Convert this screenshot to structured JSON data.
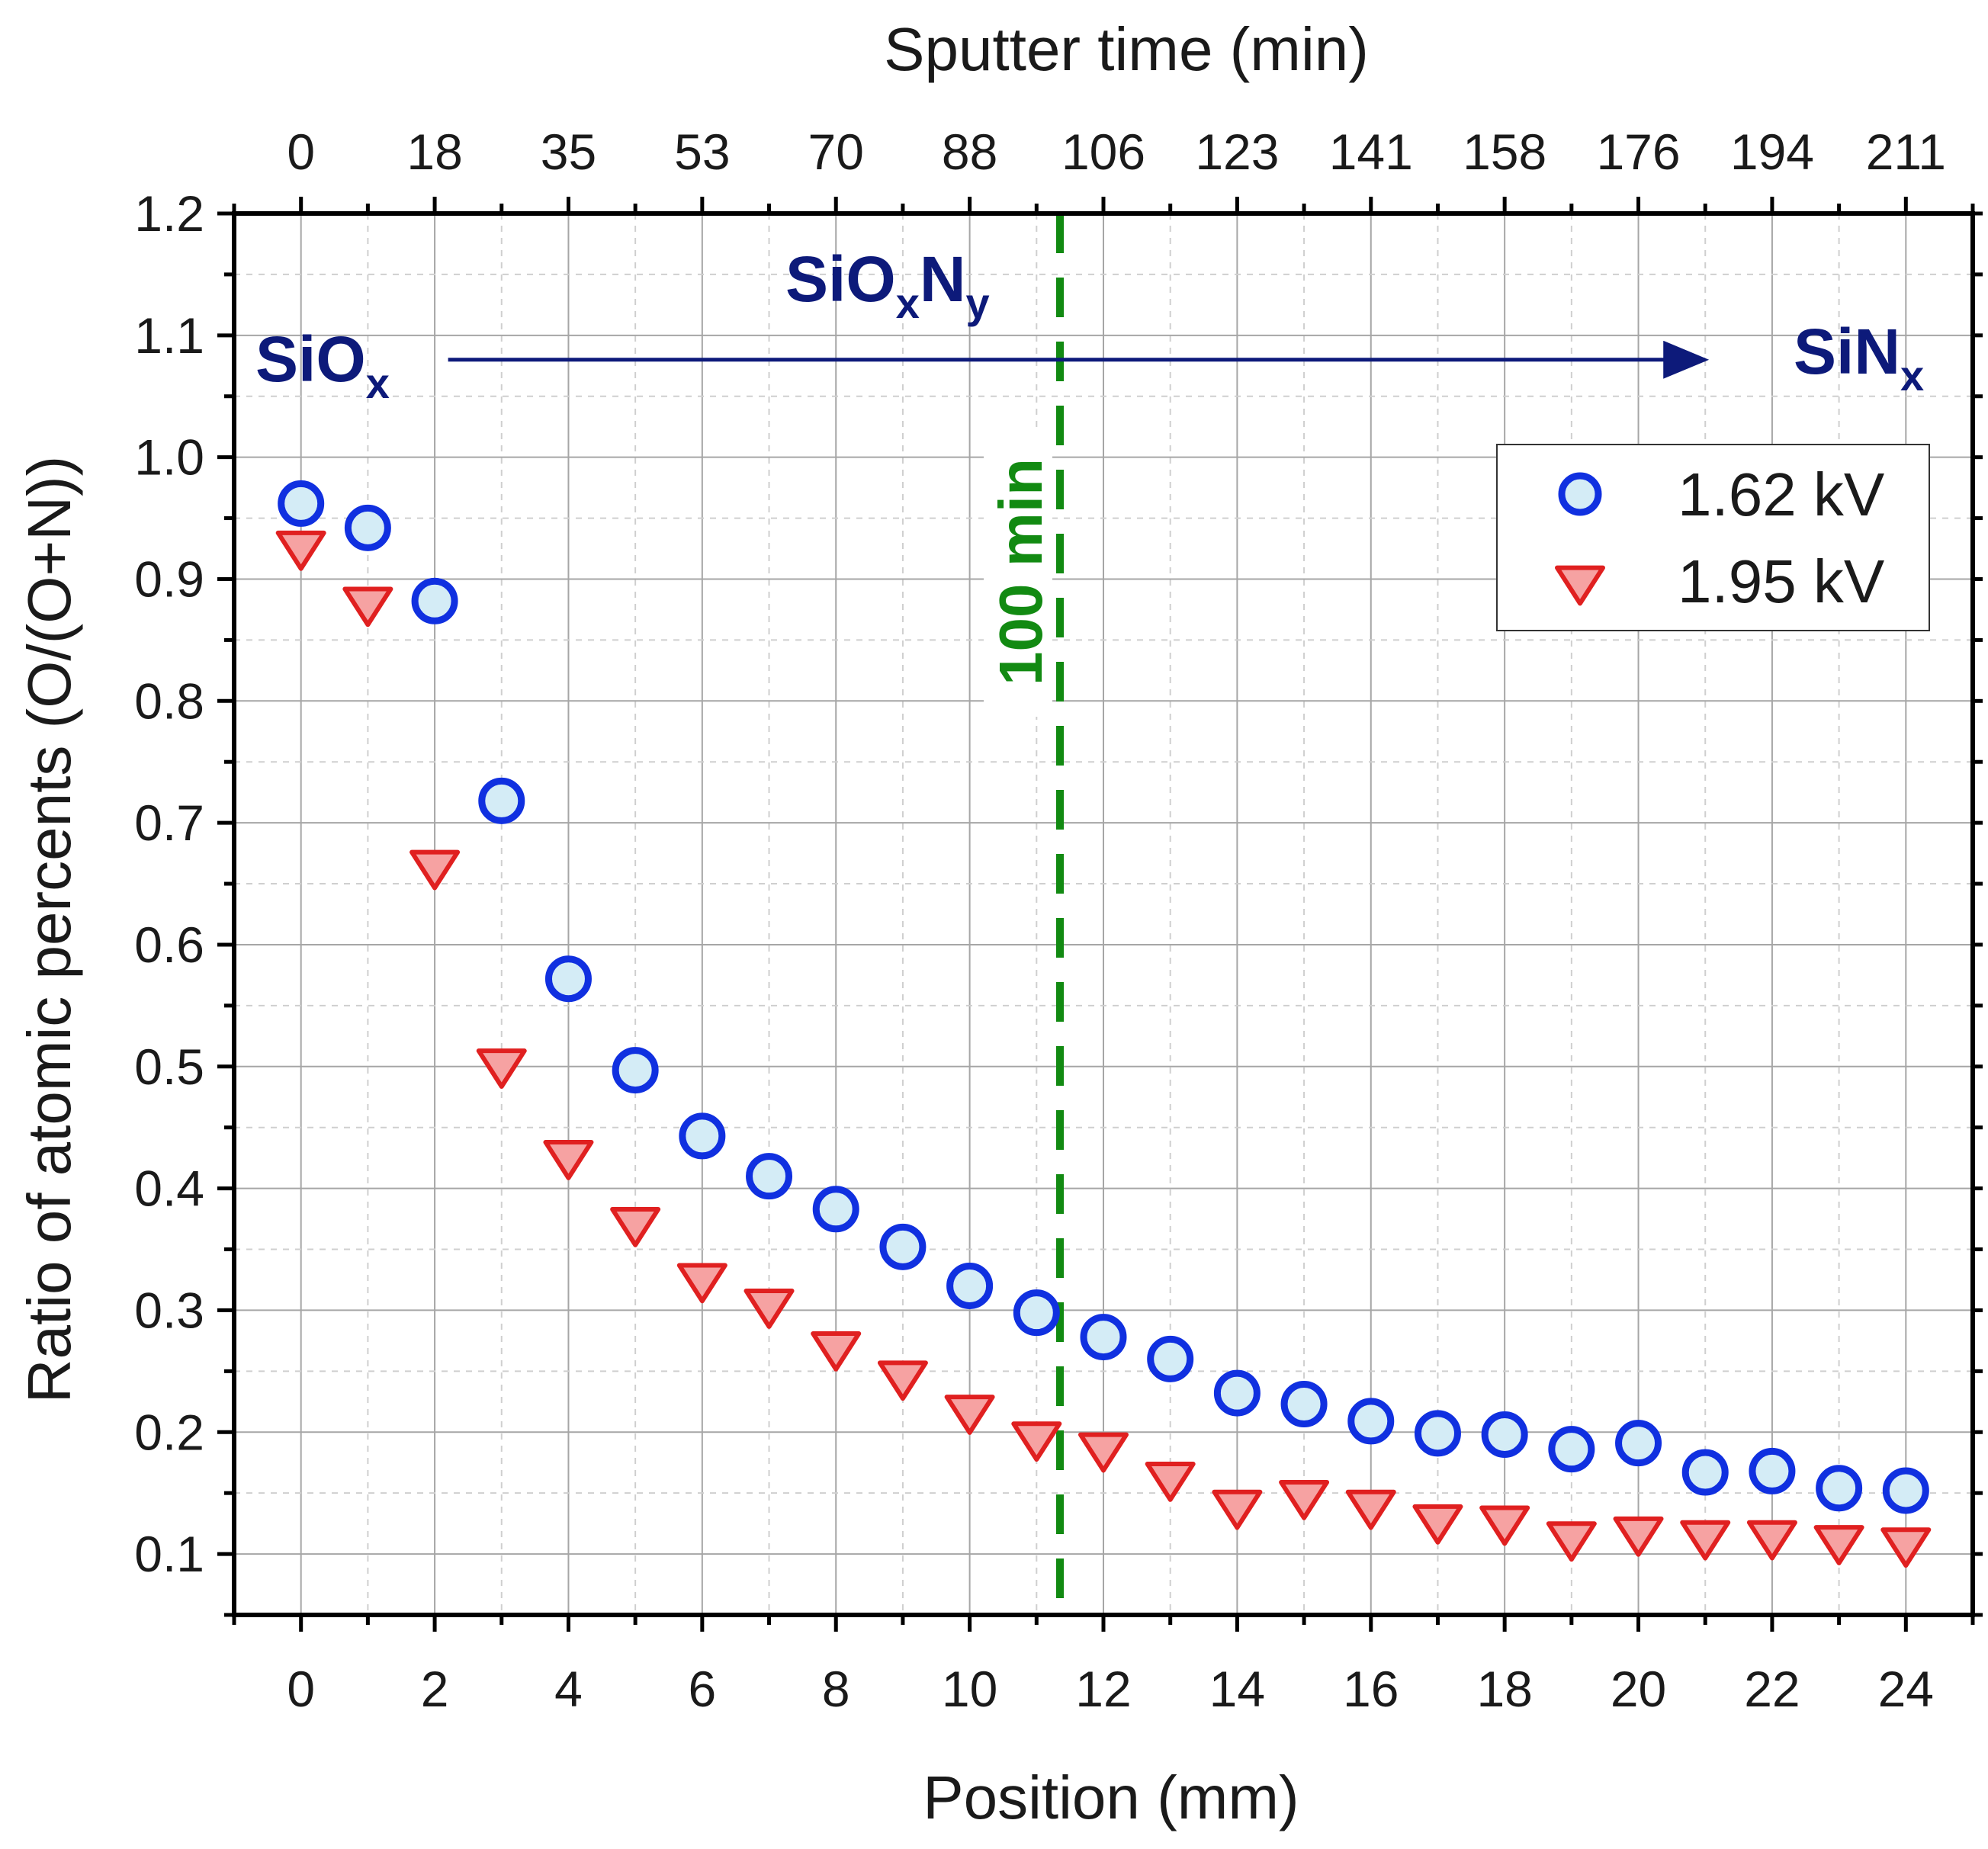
{
  "chart_data": {
    "type": "scatter",
    "xlabel": "Position (mm)",
    "ylabel": "Ratio of atomic percents (O/(O+N))",
    "top_xlabel": "Sputter time (min)",
    "xlim": [
      -1,
      25
    ],
    "ylim": [
      0.05,
      1.2
    ],
    "grid": true,
    "x_ticks": [
      0,
      2,
      4,
      6,
      8,
      10,
      12,
      14,
      16,
      18,
      20,
      22,
      24
    ],
    "y_ticks": [
      0.1,
      0.2,
      0.3,
      0.4,
      0.5,
      0.6,
      0.7,
      0.8,
      0.9,
      1.0,
      1.1,
      1.2
    ],
    "y_tick_labels": [
      "0.1",
      "0.2",
      "0.3",
      "0.4",
      "0.5",
      "0.6",
      "0.7",
      "0.8",
      "0.9",
      "1.0",
      "1.1",
      "1.2"
    ],
    "top_ticks": [
      {
        "x": 0,
        "label": "0"
      },
      {
        "x": 2,
        "label": "18"
      },
      {
        "x": 4,
        "label": "35"
      },
      {
        "x": 6,
        "label": "53"
      },
      {
        "x": 8,
        "label": "70"
      },
      {
        "x": 10,
        "label": "88"
      },
      {
        "x": 12,
        "label": "106"
      },
      {
        "x": 14,
        "label": "123"
      },
      {
        "x": 16,
        "label": "141"
      },
      {
        "x": 18,
        "label": "158"
      },
      {
        "x": 20,
        "label": "176"
      },
      {
        "x": 22,
        "label": "194"
      },
      {
        "x": 24,
        "label": "211"
      }
    ],
    "series": [
      {
        "name": "1.62 kV",
        "marker": "circle",
        "x": [
          0,
          1,
          2,
          3,
          4,
          5,
          6,
          7,
          8,
          9,
          10,
          11,
          12,
          13,
          14,
          15,
          16,
          17,
          18,
          19,
          20,
          21,
          22,
          23,
          24
        ],
        "values": [
          0.962,
          0.942,
          0.882,
          0.718,
          0.572,
          0.497,
          0.443,
          0.41,
          0.383,
          0.352,
          0.32,
          0.298,
          0.278,
          0.26,
          0.232,
          0.223,
          0.209,
          0.199,
          0.198,
          0.186,
          0.191,
          0.167,
          0.168,
          0.154,
          0.152
        ]
      },
      {
        "name": "1.95 kV",
        "marker": "triangle-down",
        "x": [
          0,
          1,
          2,
          3,
          4,
          5,
          6,
          7,
          8,
          9,
          10,
          11,
          12,
          13,
          14,
          15,
          16,
          17,
          18,
          19,
          20,
          21,
          22,
          23,
          24
        ],
        "values": [
          0.927,
          0.881,
          0.665,
          0.502,
          0.427,
          0.372,
          0.326,
          0.305,
          0.27,
          0.246,
          0.218,
          0.196,
          0.187,
          0.163,
          0.14,
          0.148,
          0.14,
          0.128,
          0.127,
          0.114,
          0.118,
          0.115,
          0.115,
          0.111,
          0.109
        ]
      }
    ],
    "vline": {
      "x": 11.35,
      "label": "100 min",
      "color": "#128a12"
    },
    "arrow": {
      "x_start": 2.2,
      "x_end": 21.0,
      "y": 1.08,
      "color": "#0d1a7a"
    },
    "region_labels": {
      "start": {
        "main": "SiO",
        "sub": "x"
      },
      "middle": {
        "main1": "SiO",
        "sub1": "x",
        "main2": "N",
        "sub2": "y"
      },
      "end": {
        "main": "SiN",
        "sub": "x"
      }
    },
    "legend_position": "top-right",
    "colors": {
      "circle_stroke": "#1030e0",
      "circle_fill": "#d4ecf6",
      "triangle_stroke": "#e02020",
      "triangle_fill": "#f6a2a2"
    }
  }
}
